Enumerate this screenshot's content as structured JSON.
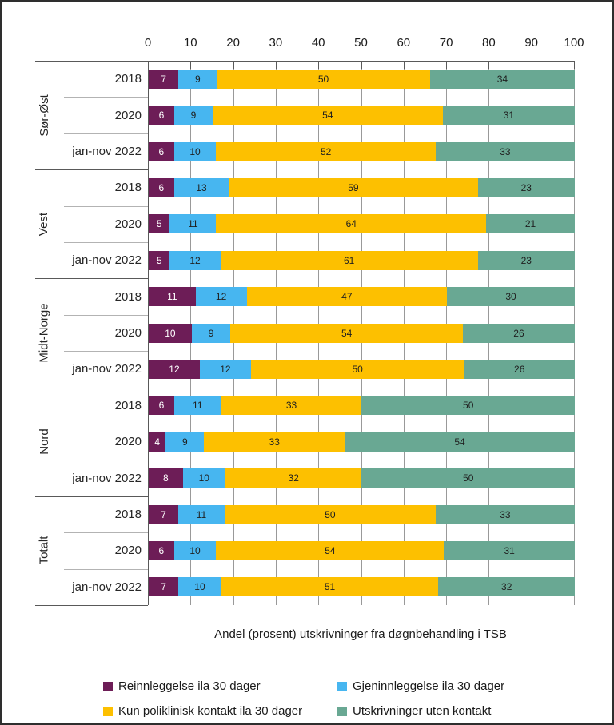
{
  "chart_data": {
    "type": "bar",
    "stacked": true,
    "orientation": "horizontal",
    "xlabel": "Andel (prosent)  utskrivninger fra døgnbehandling i TSB",
    "xlim": [
      0,
      100
    ],
    "x_ticks": [
      0,
      10,
      20,
      30,
      40,
      50,
      60,
      70,
      80,
      90,
      100
    ],
    "grid": "vertical",
    "legend_position": "bottom",
    "series": [
      {
        "name": "Reinnleggelse ila 30 dager",
        "color": "#6d1d57",
        "label_color": "#ffffff"
      },
      {
        "name": "Gjeninnleggelse ila 30 dager",
        "color": "#47b6f0",
        "label_color": "#1f1f1f"
      },
      {
        "name": "Kun poliklinisk kontakt ila 30 dager",
        "color": "#fdc000",
        "label_color": "#1f1f1f"
      },
      {
        "name": "Utskrivninger uten kontakt",
        "color": "#69a893",
        "label_color": "#1f1f1f"
      }
    ],
    "groups": [
      {
        "label": "Sør-Øst",
        "rows": [
          {
            "label": "2018",
            "values": [
              7,
              9,
              50,
              34
            ]
          },
          {
            "label": "2020",
            "values": [
              6,
              9,
              54,
              31
            ]
          },
          {
            "label": "jan-nov 2022",
            "values": [
              6,
              10,
              52,
              33
            ]
          }
        ]
      },
      {
        "label": "Vest",
        "rows": [
          {
            "label": "2018",
            "values": [
              6,
              13,
              59,
              23
            ]
          },
          {
            "label": "2020",
            "values": [
              5,
              11,
              64,
              21
            ]
          },
          {
            "label": "jan-nov 2022",
            "values": [
              5,
              12,
              61,
              23
            ]
          }
        ]
      },
      {
        "label": "Midt-Norge",
        "rows": [
          {
            "label": "2018",
            "values": [
              11,
              12,
              47,
              30
            ]
          },
          {
            "label": "2020",
            "values": [
              10,
              9,
              54,
              26
            ]
          },
          {
            "label": "jan-nov 2022",
            "values": [
              12,
              12,
              50,
              26
            ]
          }
        ]
      },
      {
        "label": "Nord",
        "rows": [
          {
            "label": "2018",
            "values": [
              6,
              11,
              33,
              50
            ]
          },
          {
            "label": "2020",
            "values": [
              4,
              9,
              33,
              54
            ]
          },
          {
            "label": "jan-nov 2022",
            "values": [
              8,
              10,
              32,
              50
            ]
          }
        ]
      },
      {
        "label": "Totalt",
        "rows": [
          {
            "label": "2018",
            "values": [
              7,
              11,
              50,
              33
            ]
          },
          {
            "label": "2020",
            "values": [
              6,
              10,
              54,
              31
            ]
          },
          {
            "label": "jan-nov 2022",
            "values": [
              7,
              10,
              51,
              32
            ]
          }
        ]
      }
    ]
  },
  "colors": {
    "gridline": "#999999",
    "axis": "#595959",
    "row_separator": "#b3b3b3",
    "border": "#2e2e2e"
  }
}
